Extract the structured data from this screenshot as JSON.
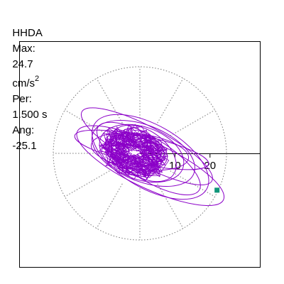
{
  "header": {
    "component": "HHDA",
    "max_label": "Max:",
    "max_value": "24.7",
    "max_unit": "cm/s",
    "max_unit_exp": "2",
    "per_label": "Per:",
    "per_value": "1.500 s",
    "ang_label": "Ang:",
    "ang_value": "-25.1"
  },
  "chart_data": {
    "type": "polar-orbit",
    "max_radius": 24.7,
    "angle_deg": -25.1,
    "tick_labels": [
      "10",
      "20"
    ],
    "ring_radii": [
      10,
      20
    ],
    "spoke_step_deg": 30,
    "trace_color": "#8B00C8",
    "marker_color": "#10967A",
    "marker_point": [
      22,
      -10.5
    ],
    "loops": [
      {
        "a": 23.0,
        "b": 6.5,
        "rot": -25.1,
        "cx": 3.0,
        "cy": -3.5
      },
      {
        "a": 21.0,
        "b": 5.5,
        "rot": -28,
        "cx": 2.0,
        "cy": 2.0
      },
      {
        "a": 19.5,
        "b": 4.0,
        "rot": -12,
        "cx": 0.5,
        "cy": 1.0
      },
      {
        "a": 17.0,
        "b": 6.0,
        "rot": -32,
        "cx": 2.5,
        "cy": -1.5
      },
      {
        "a": 14.0,
        "b": 5.0,
        "rot": -8,
        "cx": 0.0,
        "cy": 0.5
      },
      {
        "a": 12.5,
        "b": 7.5,
        "rot": -20,
        "cx": 0.5,
        "cy": 0.0
      },
      {
        "a": 10.5,
        "b": 6.5,
        "rot": -35,
        "cx": 1.0,
        "cy": 0.0
      },
      {
        "a": 8.5,
        "b": 5.0,
        "rot": -15,
        "cx": -0.5,
        "cy": 0.5
      },
      {
        "a": 18.5,
        "b": 9.0,
        "rot": -30,
        "cx": 3.0,
        "cy": -1.0
      },
      {
        "a": 15.5,
        "b": 8.0,
        "rot": -22,
        "cx": 1.0,
        "cy": 0.0
      }
    ]
  }
}
